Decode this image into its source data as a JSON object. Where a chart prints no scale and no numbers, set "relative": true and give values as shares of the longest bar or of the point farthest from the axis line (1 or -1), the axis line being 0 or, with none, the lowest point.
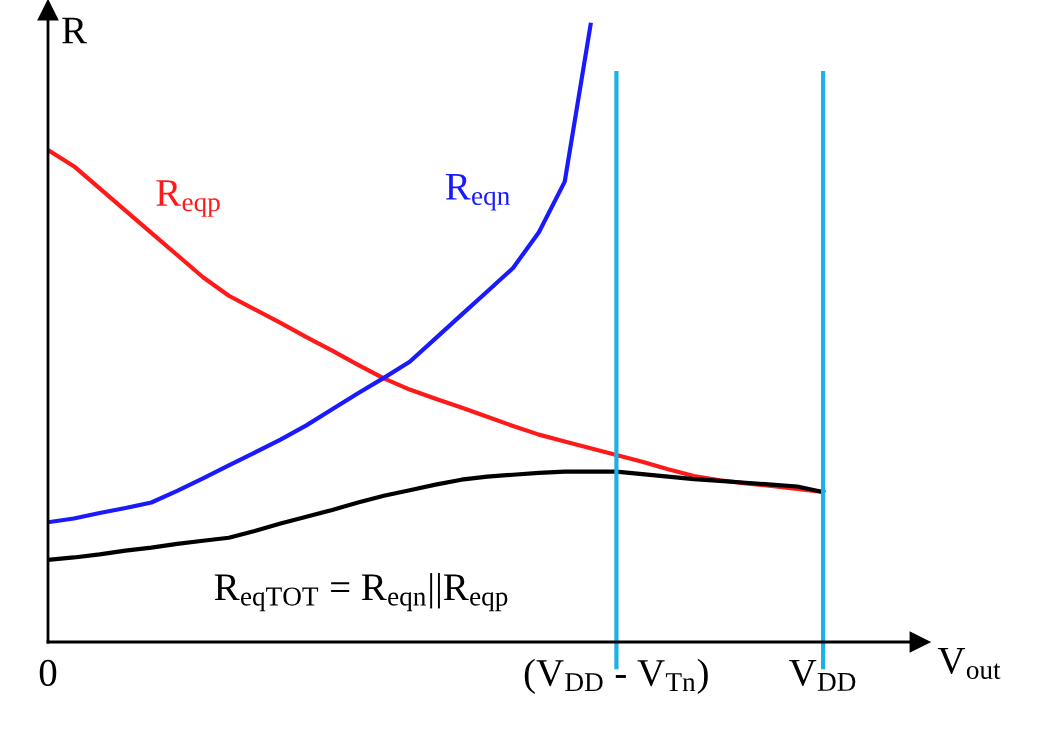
{
  "chart_data": {
    "type": "line",
    "relative": true,
    "ylabel": "R",
    "xlabel": "V$_{out}$",
    "categories": [
      "0",
      null,
      null,
      null,
      null,
      null,
      null,
      null,
      null,
      null,
      null,
      null,
      null,
      null,
      null,
      null,
      null,
      null,
      null,
      null,
      null,
      null,
      "(V$_{DD}$ - V$_{Tn}$)",
      null,
      null,
      null,
      null,
      null,
      null,
      null,
      "V$_{DD}$"
    ],
    "ref_lines": [
      {
        "axis": "x",
        "value": "(V$_{DD}$ - V$_{Tn}$)",
        "color": "#1ab0e8"
      },
      {
        "axis": "x",
        "value": "V$_{DD}$",
        "color": "#1ab0e8"
      }
    ],
    "series": [
      {
        "name": "R$_{eqp}$",
        "color": "#ff1a1a",
        "values": [
          0.797,
          0.771,
          0.735,
          0.699,
          0.663,
          0.627,
          0.591,
          0.561,
          0.539,
          0.517,
          0.494,
          0.472,
          0.449,
          0.427,
          0.409,
          0.394,
          0.38,
          0.365,
          0.35,
          0.336,
          0.325,
          0.314,
          0.303,
          0.292,
          0.28,
          0.269,
          0.262,
          0.257,
          0.253,
          0.248,
          0.243
        ]
      },
      {
        "name": "R$_{eqn}$",
        "color": "#1a1aff",
        "values": [
          0.194,
          0.2,
          0.209,
          0.217,
          0.226,
          0.245,
          0.265,
          0.286,
          0.307,
          0.328,
          0.351,
          0.377,
          0.403,
          0.428,
          0.454,
          0.492,
          0.53,
          0.568,
          0.606,
          0.664,
          0.746,
          1,
          null,
          null,
          null,
          null,
          null,
          null,
          null,
          null,
          null
        ]
      },
      {
        "name": "R$_{eqTOT}$ = R$_{eqn}$||R$_{eqp}$",
        "color": "#000000",
        "values": [
          0.133,
          0.137,
          0.142,
          0.148,
          0.153,
          0.159,
          0.164,
          0.169,
          0.18,
          0.192,
          0.203,
          0.214,
          0.226,
          0.237,
          0.246,
          0.255,
          0.263,
          0.268,
          0.271,
          0.274,
          0.276,
          0.276,
          0.276,
          0.272,
          0.268,
          0.264,
          0.261,
          0.258,
          0.255,
          0.252,
          0.243
        ]
      }
    ],
    "grid": false,
    "legend": false
  }
}
